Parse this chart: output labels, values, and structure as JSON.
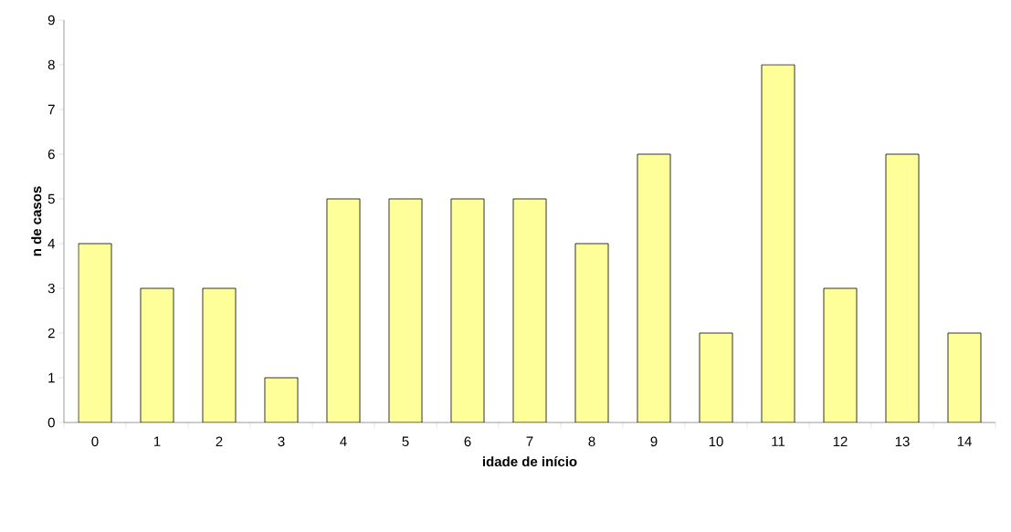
{
  "chart_data": {
    "type": "bar",
    "xlabel": "idade de início",
    "ylabel": "n de casos",
    "categories": [
      "0",
      "1",
      "2",
      "3",
      "4",
      "5",
      "6",
      "7",
      "8",
      "9",
      "10",
      "11",
      "12",
      "13",
      "14"
    ],
    "values": [
      4,
      3,
      3,
      1,
      5,
      5,
      5,
      5,
      4,
      6,
      2,
      8,
      3,
      6,
      2
    ],
    "color": "#ffff99",
    "ylim": [
      0,
      9
    ],
    "yticks": [
      0,
      1,
      2,
      3,
      4,
      5,
      6,
      7,
      8,
      9
    ]
  }
}
